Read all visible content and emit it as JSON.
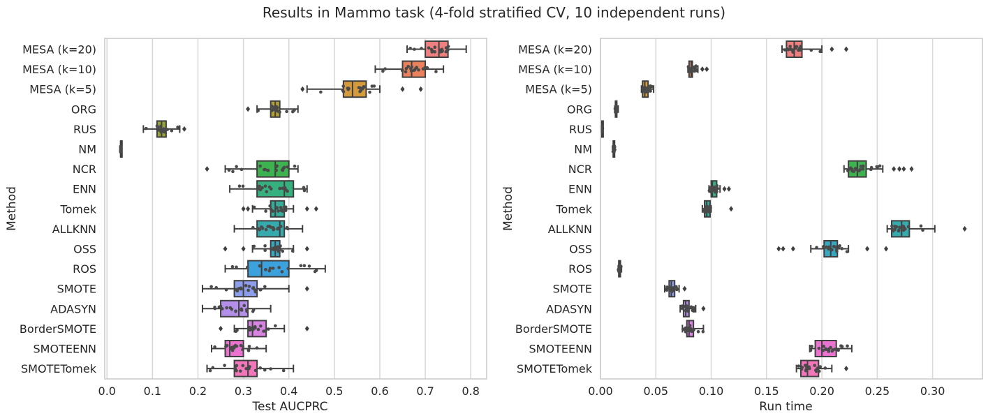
{
  "figure_title": "Results in Mammo task (4-fold stratified CV, 10 independent runs)",
  "colors": {
    "MESA (k=20)": "#f08080",
    "MESA (k=10)": "#e9815c",
    "MESA (k=5)": "#d49a3c",
    "ORG": "#b3a03a",
    "RUS": "#97a23a",
    "NM": "#6cac3c",
    "NCR": "#3db34f",
    "ENN": "#37b07f",
    "Tomek": "#38ac99",
    "ALLKNN": "#36aaac",
    "OSS": "#39a7bf",
    "ROS": "#3ca1dc",
    "SMOTE": "#8c9deb",
    "ADASYN": "#b38fea",
    "BorderSMOTE": "#d783e2",
    "SMOTEENN": "#ea73d0",
    "SMOTETomek": "#f277ba"
  },
  "chart_data": [
    {
      "type": "box",
      "orientation": "horizontal",
      "xlabel": "Test AUCPRC",
      "ylabel": "Method",
      "xlim": [
        -0.005,
        0.835
      ],
      "xticks": [
        0.0,
        0.1,
        0.2,
        0.3,
        0.4,
        0.5,
        0.6,
        0.7,
        0.8
      ],
      "xtick_labels": [
        "0.0",
        "0.1",
        "0.2",
        "0.3",
        "0.4",
        "0.5",
        "0.6",
        "0.7",
        "0.8"
      ],
      "grid": "vertical",
      "categories": [
        "MESA (k=20)",
        "MESA (k=10)",
        "MESA (k=5)",
        "ORG",
        "RUS",
        "NM",
        "NCR",
        "ENN",
        "Tomek",
        "ALLKNN",
        "OSS",
        "ROS",
        "SMOTE",
        "ADASYN",
        "BorderSMOTE",
        "SMOTEENN",
        "SMOTETomek"
      ],
      "boxes": [
        {
          "whislo": 0.66,
          "q1": 0.7,
          "med": 0.73,
          "q3": 0.75,
          "whishi": 0.79,
          "fliers": []
        },
        {
          "whislo": 0.59,
          "q1": 0.65,
          "med": 0.67,
          "q3": 0.7,
          "whishi": 0.74,
          "fliers": []
        },
        {
          "whislo": 0.44,
          "q1": 0.52,
          "med": 0.54,
          "q3": 0.57,
          "whishi": 0.6,
          "fliers": [
            0.43,
            0.65,
            0.69
          ]
        },
        {
          "whislo": 0.33,
          "q1": 0.36,
          "med": 0.37,
          "q3": 0.38,
          "whishi": 0.42,
          "fliers": [
            0.31
          ]
        },
        {
          "whislo": 0.08,
          "q1": 0.11,
          "med": 0.12,
          "q3": 0.13,
          "whishi": 0.16,
          "fliers": [
            0.17
          ]
        },
        {
          "whislo": 0.03,
          "q1": 0.03,
          "med": 0.03,
          "q3": 0.03,
          "whishi": 0.03,
          "fliers": []
        },
        {
          "whislo": 0.26,
          "q1": 0.33,
          "med": 0.37,
          "q3": 0.4,
          "whishi": 0.42,
          "fliers": [
            0.22
          ]
        },
        {
          "whislo": 0.27,
          "q1": 0.33,
          "med": 0.39,
          "q3": 0.41,
          "whishi": 0.44,
          "fliers": []
        },
        {
          "whislo": 0.32,
          "q1": 0.36,
          "med": 0.37,
          "q3": 0.39,
          "whishi": 0.41,
          "fliers": [
            0.3,
            0.31,
            0.44,
            0.46
          ]
        },
        {
          "whislo": 0.28,
          "q1": 0.33,
          "med": 0.38,
          "q3": 0.39,
          "whishi": 0.43,
          "fliers": []
        },
        {
          "whislo": 0.32,
          "q1": 0.36,
          "med": 0.37,
          "q3": 0.38,
          "whishi": 0.41,
          "fliers": [
            0.26,
            0.3,
            0.44
          ]
        },
        {
          "whislo": 0.26,
          "q1": 0.31,
          "med": 0.34,
          "q3": 0.4,
          "whishi": 0.48,
          "fliers": []
        },
        {
          "whislo": 0.21,
          "q1": 0.28,
          "med": 0.3,
          "q3": 0.33,
          "whishi": 0.4,
          "fliers": [
            0.44
          ]
        },
        {
          "whislo": 0.21,
          "q1": 0.25,
          "med": 0.29,
          "q3": 0.31,
          "whishi": 0.36,
          "fliers": []
        },
        {
          "whislo": 0.28,
          "q1": 0.31,
          "med": 0.32,
          "q3": 0.35,
          "whishi": 0.39,
          "fliers": [
            0.25,
            0.44
          ]
        },
        {
          "whislo": 0.23,
          "q1": 0.26,
          "med": 0.27,
          "q3": 0.3,
          "whishi": 0.35,
          "fliers": []
        },
        {
          "whislo": 0.22,
          "q1": 0.28,
          "med": 0.31,
          "q3": 0.33,
          "whishi": 0.41,
          "fliers": []
        }
      ]
    },
    {
      "type": "box",
      "orientation": "horizontal",
      "xlabel": "Run time",
      "ylabel": "Method",
      "xlim": [
        0.0,
        0.345
      ],
      "xticks": [
        0.0,
        0.05,
        0.1,
        0.15,
        0.2,
        0.25,
        0.3
      ],
      "xtick_labels": [
        "0.00",
        "0.05",
        "0.10",
        "0.15",
        "0.20",
        "0.25",
        "0.30"
      ],
      "grid": "vertical",
      "categories": [
        "MESA (k=20)",
        "MESA (k=10)",
        "MESA (k=5)",
        "ORG",
        "RUS",
        "NM",
        "NCR",
        "ENN",
        "Tomek",
        "ALLKNN",
        "OSS",
        "ROS",
        "SMOTE",
        "ADASYN",
        "BorderSMOTE",
        "SMOTEENN",
        "SMOTETomek"
      ],
      "boxes": [
        {
          "whislo": 0.164,
          "q1": 0.168,
          "med": 0.175,
          "q3": 0.182,
          "whishi": 0.2,
          "fliers": [
            0.209,
            0.222
          ]
        },
        {
          "whislo": 0.079,
          "q1": 0.08,
          "med": 0.082,
          "q3": 0.083,
          "whishi": 0.088,
          "fliers": [
            0.092,
            0.096
          ]
        },
        {
          "whislo": 0.037,
          "q1": 0.038,
          "med": 0.04,
          "q3": 0.043,
          "whishi": 0.048,
          "fliers": []
        },
        {
          "whislo": 0.013,
          "q1": 0.0135,
          "med": 0.014,
          "q3": 0.0145,
          "whishi": 0.016,
          "fliers": []
        },
        {
          "whislo": 0.001,
          "q1": 0.0012,
          "med": 0.0015,
          "q3": 0.0018,
          "whishi": 0.002,
          "fliers": []
        },
        {
          "whislo": 0.011,
          "q1": 0.0115,
          "med": 0.012,
          "q3": 0.0125,
          "whishi": 0.013,
          "fliers": []
        },
        {
          "whislo": 0.22,
          "q1": 0.224,
          "med": 0.232,
          "q3": 0.24,
          "whishi": 0.255,
          "fliers": [
            0.265,
            0.27,
            0.274,
            0.281
          ]
        },
        {
          "whislo": 0.098,
          "q1": 0.1,
          "med": 0.101,
          "q3": 0.105,
          "whishi": 0.108,
          "fliers": [
            0.112,
            0.116
          ]
        },
        {
          "whislo": 0.092,
          "q1": 0.094,
          "med": 0.096,
          "q3": 0.099,
          "whishi": 0.1,
          "fliers": [
            0.118
          ]
        },
        {
          "whislo": 0.259,
          "q1": 0.263,
          "med": 0.272,
          "q3": 0.279,
          "whishi": 0.302,
          "fliers": [
            0.329
          ]
        },
        {
          "whislo": 0.19,
          "q1": 0.202,
          "med": 0.208,
          "q3": 0.214,
          "whishi": 0.224,
          "fliers": [
            0.161,
            0.165,
            0.174,
            0.241,
            0.258
          ]
        },
        {
          "whislo": 0.016,
          "q1": 0.0165,
          "med": 0.017,
          "q3": 0.018,
          "whishi": 0.019,
          "fliers": []
        },
        {
          "whislo": 0.058,
          "q1": 0.062,
          "med": 0.064,
          "q3": 0.067,
          "whishi": 0.071,
          "fliers": [
            0.076
          ]
        },
        {
          "whislo": 0.072,
          "q1": 0.075,
          "med": 0.077,
          "q3": 0.08,
          "whishi": 0.086,
          "fliers": [
            0.093
          ]
        },
        {
          "whislo": 0.074,
          "q1": 0.078,
          "med": 0.08,
          "q3": 0.084,
          "whishi": 0.093,
          "fliers": []
        },
        {
          "whislo": 0.189,
          "q1": 0.194,
          "med": 0.2,
          "q3": 0.213,
          "whishi": 0.227,
          "fliers": []
        },
        {
          "whislo": 0.177,
          "q1": 0.181,
          "med": 0.187,
          "q3": 0.197,
          "whishi": 0.209,
          "fliers": [
            0.222
          ]
        }
      ]
    }
  ]
}
